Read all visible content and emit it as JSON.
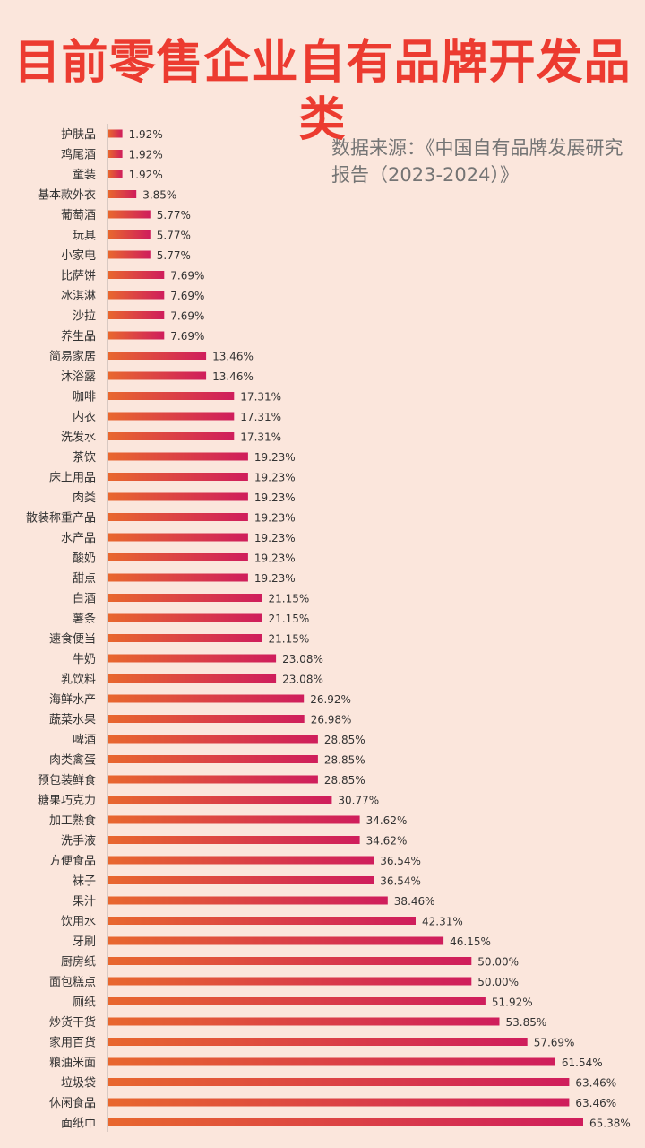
{
  "title": "目前零售企业自有品牌开发品类",
  "source": "数据来源：《中国自有品牌发展研究报告（2023-2024）》",
  "colors": {
    "bar_start": "#e8672e",
    "bar_end": "#cf1d5c",
    "title": "#ec3b30",
    "background": "#fbe6dc"
  },
  "chart_data": {
    "type": "bar",
    "orientation": "horizontal",
    "categories": [
      "护肤品",
      "鸡尾酒",
      "童装",
      "基本款外衣",
      "葡萄酒",
      "玩具",
      "小家电",
      "比萨饼",
      "冰淇淋",
      "沙拉",
      "养生品",
      "简易家居",
      "沐浴露",
      "咖啡",
      "内衣",
      "洗发水",
      "茶饮",
      "床上用品",
      "肉类",
      "散装称重产品",
      "水产品",
      "酸奶",
      "甜点",
      "白酒",
      "薯条",
      "速食便当",
      "牛奶",
      "乳饮料",
      "海鲜水产",
      "蔬菜水果",
      "啤酒",
      "肉类禽蛋",
      "预包装鲜食",
      "糖果巧克力",
      "加工熟食",
      "洗手液",
      "方便食品",
      "袜子",
      "果汁",
      "饮用水",
      "牙刷",
      "厨房纸",
      "面包糕点",
      "厕纸",
      "炒货干货",
      "家用百货",
      "粮油米面",
      "垃圾袋",
      "休闲食品",
      "面纸巾"
    ],
    "values": [
      1.92,
      1.92,
      1.92,
      3.85,
      5.77,
      5.77,
      5.77,
      7.69,
      7.69,
      7.69,
      7.69,
      13.46,
      13.46,
      17.31,
      17.31,
      17.31,
      19.23,
      19.23,
      19.23,
      19.23,
      19.23,
      19.23,
      19.23,
      21.15,
      21.15,
      21.15,
      23.08,
      23.08,
      26.92,
      26.98,
      28.85,
      28.85,
      28.85,
      30.77,
      34.62,
      34.62,
      36.54,
      36.54,
      38.46,
      42.31,
      46.15,
      50.0,
      50.0,
      51.92,
      53.85,
      57.69,
      61.54,
      63.46,
      63.46,
      65.38
    ],
    "value_labels": [
      "1.92%",
      "1.92%",
      "1.92%",
      "3.85%",
      "5.77%",
      "5.77%",
      "5.77%",
      "7.69%",
      "7.69%",
      "7.69%",
      "7.69%",
      "13.46%",
      "13.46%",
      "17.31%",
      "17.31%",
      "17.31%",
      "19.23%",
      "19.23%",
      "19.23%",
      "19.23%",
      "19.23%",
      "19.23%",
      "19.23%",
      "21.15%",
      "21.15%",
      "21.15%",
      "23.08%",
      "23.08%",
      "26.92%",
      "26.98%",
      "28.85%",
      "28.85%",
      "28.85%",
      "30.77%",
      "34.62%",
      "34.62%",
      "36.54%",
      "36.54%",
      "38.46%",
      "42.31%",
      "46.15%",
      "50.00%",
      "50.00%",
      "51.92%",
      "53.85%",
      "57.69%",
      "61.54%",
      "63.46%",
      "63.46%",
      "65.38%"
    ],
    "unit": "%",
    "xlim": [
      0,
      65.38
    ],
    "grid": false,
    "legend": "none"
  }
}
